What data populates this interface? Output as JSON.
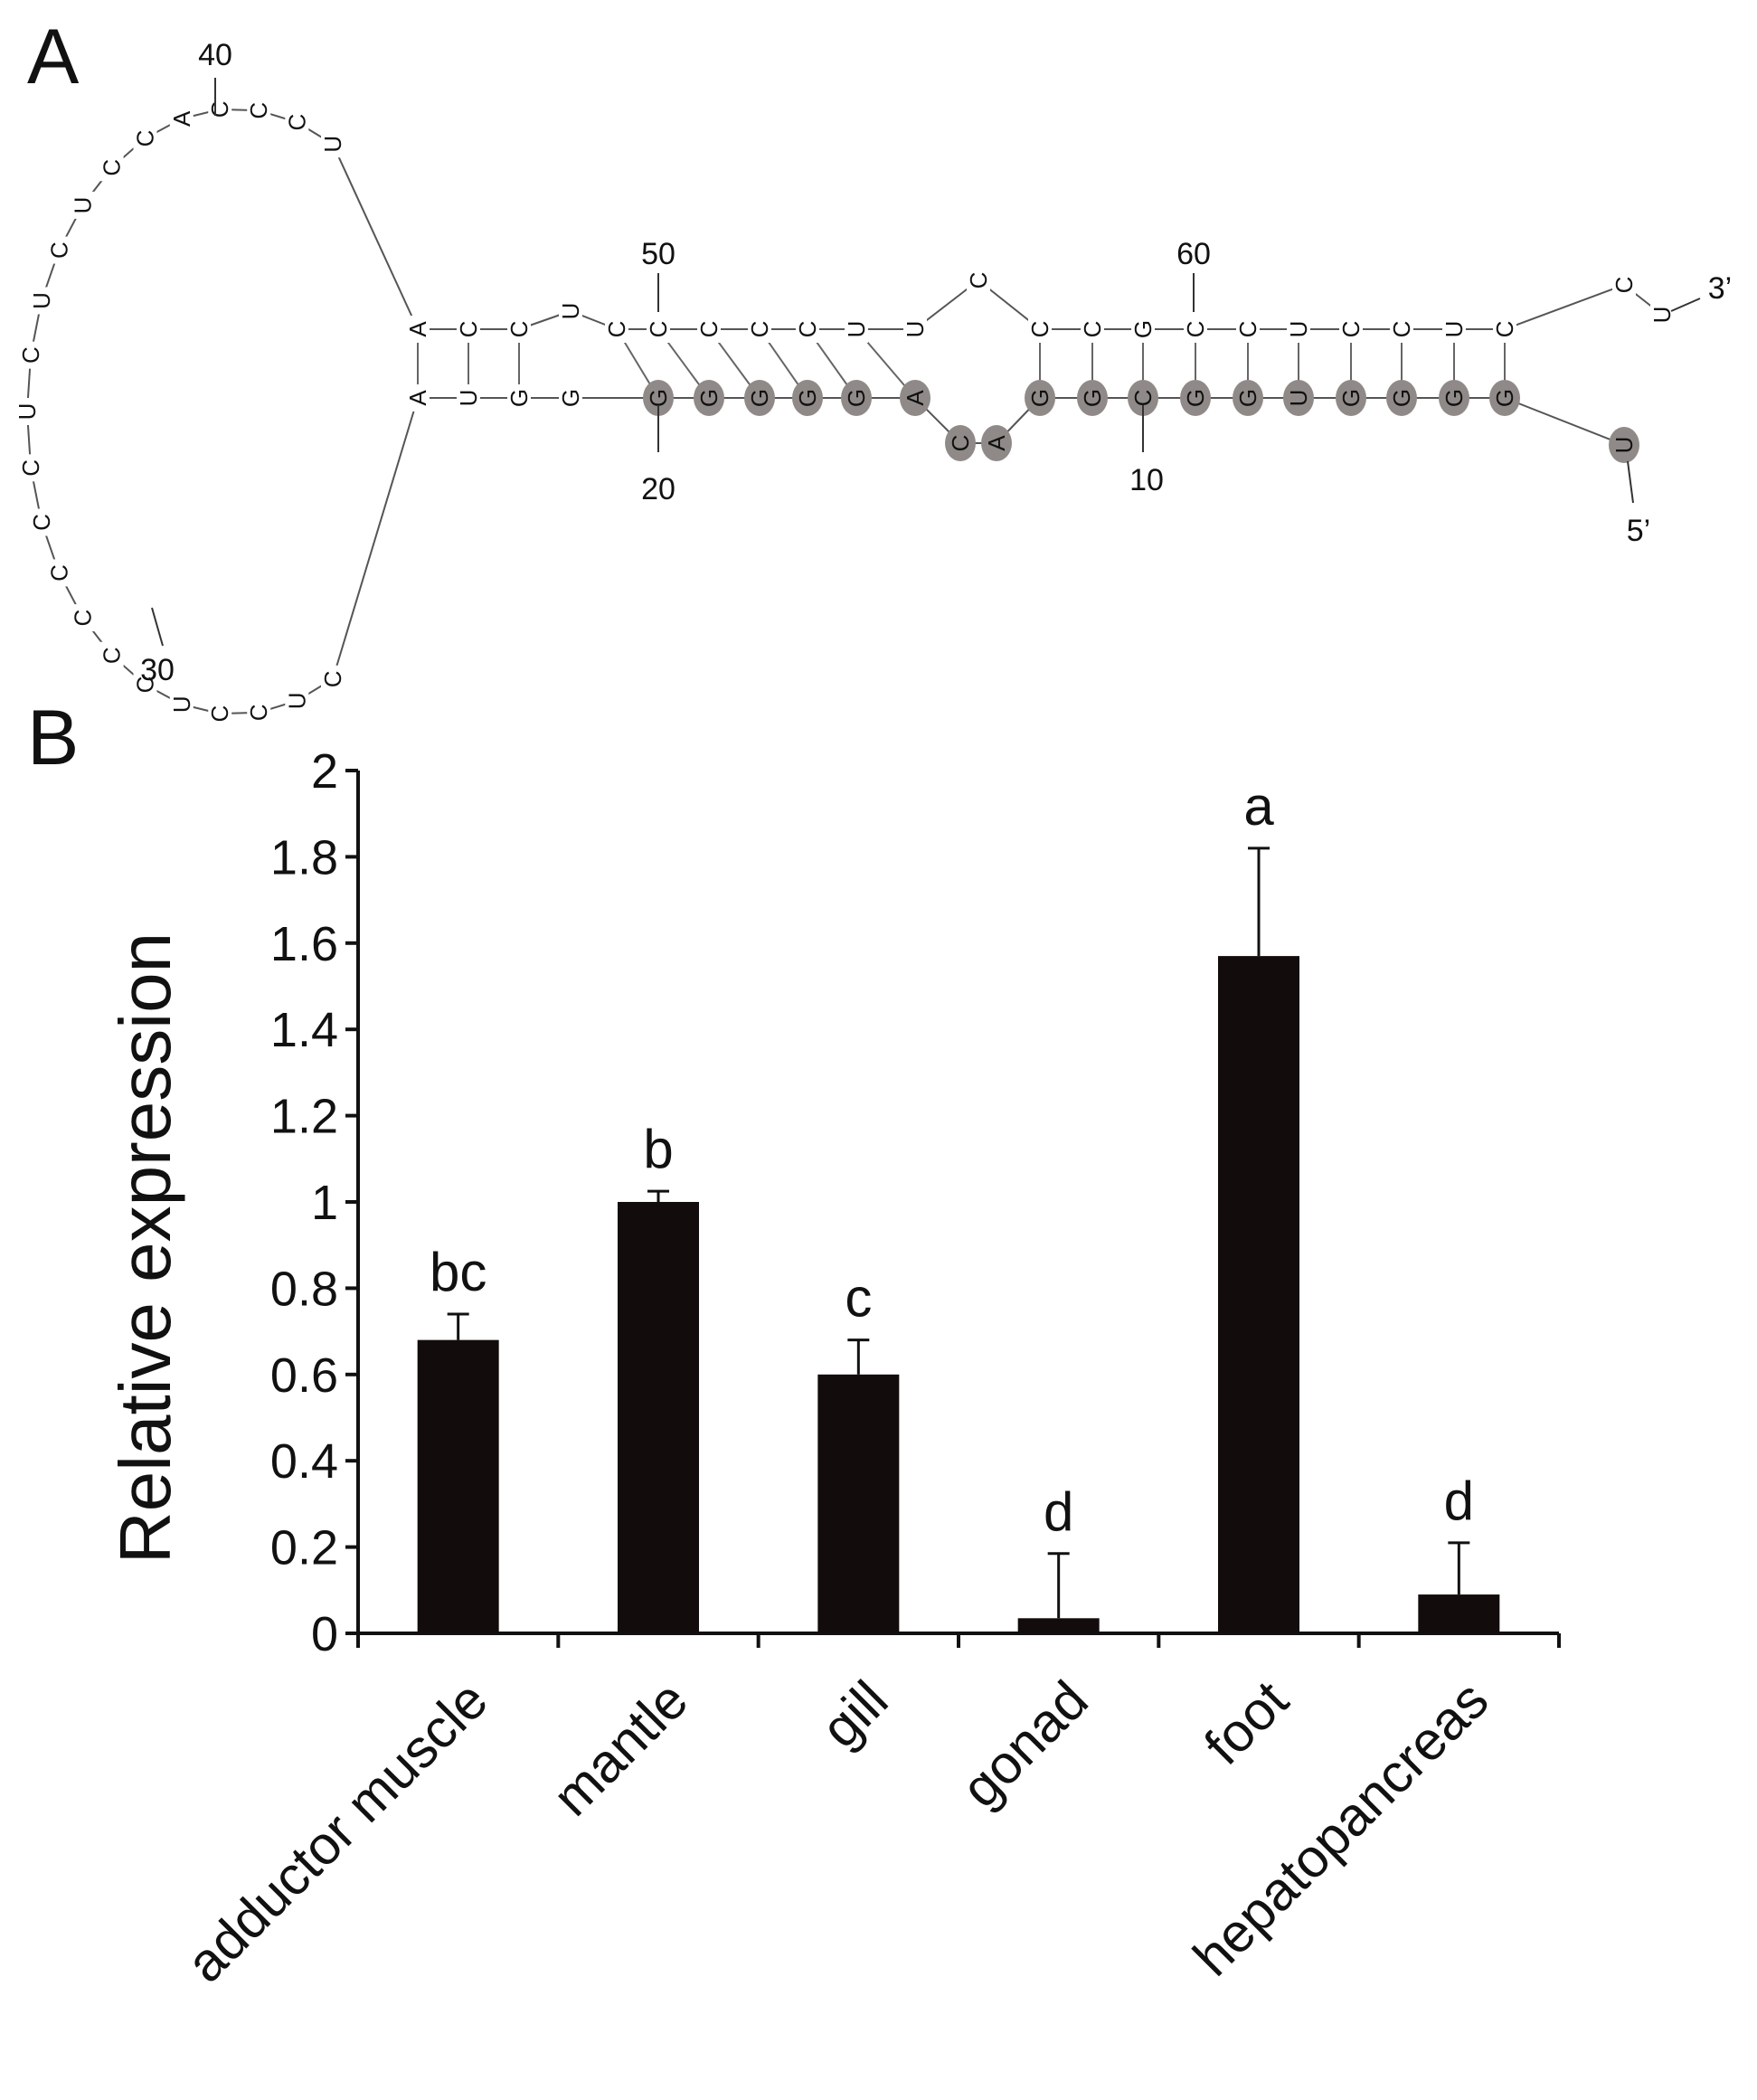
{
  "figure": {
    "panel_a_label": "A",
    "panel_b_label": "B"
  },
  "structure": {
    "top_strand": [
      {
        "nt": "A",
        "highlight": false
      },
      {
        "nt": "C",
        "highlight": false
      },
      {
        "nt": "C",
        "highlight": false
      },
      {
        "nt": "U",
        "highlight": false
      },
      {
        "nt": "C",
        "highlight": false
      },
      {
        "nt": "C",
        "highlight": false
      },
      {
        "nt": "C",
        "highlight": false
      },
      {
        "nt": "C",
        "highlight": false
      },
      {
        "nt": "C",
        "highlight": false
      },
      {
        "nt": "U",
        "highlight": false
      },
      {
        "nt": "U",
        "highlight": false
      },
      {
        "nt": "C",
        "highlight": false
      },
      {
        "nt": "C",
        "highlight": false
      },
      {
        "nt": "G",
        "highlight": false
      },
      {
        "nt": "C",
        "highlight": false
      },
      {
        "nt": "C",
        "highlight": false
      },
      {
        "nt": "U",
        "highlight": false
      },
      {
        "nt": "C",
        "highlight": false
      },
      {
        "nt": "C",
        "highlight": false
      },
      {
        "nt": "U",
        "highlight": false
      },
      {
        "nt": "C",
        "highlight": false
      }
    ],
    "top_tail": [
      "C",
      "U"
    ],
    "bottom_strand": [
      {
        "nt": "A",
        "highlight": false
      },
      {
        "nt": "U",
        "highlight": false
      },
      {
        "nt": "G",
        "highlight": false
      },
      {
        "nt": "G",
        "highlight": false
      },
      {
        "nt": "G",
        "highlight": true
      },
      {
        "nt": "G",
        "highlight": true
      },
      {
        "nt": "G",
        "highlight": true
      },
      {
        "nt": "G",
        "highlight": true
      },
      {
        "nt": "G",
        "highlight": true
      },
      {
        "nt": "A",
        "highlight": true
      },
      {
        "nt": "G",
        "highlight": true
      },
      {
        "nt": "G",
        "highlight": true
      },
      {
        "nt": "C",
        "highlight": true
      },
      {
        "nt": "G",
        "highlight": true
      },
      {
        "nt": "G",
        "highlight": true
      },
      {
        "nt": "U",
        "highlight": true
      },
      {
        "nt": "G",
        "highlight": true
      },
      {
        "nt": "G",
        "highlight": true
      },
      {
        "nt": "G",
        "highlight": true
      },
      {
        "nt": "G",
        "highlight": true
      }
    ],
    "bulge": [
      {
        "nt": "C",
        "highlight": true
      },
      {
        "nt": "A",
        "highlight": true
      }
    ],
    "bottom_tail": {
      "nt": "U",
      "highlight": true
    },
    "loop": [
      "C",
      "U",
      "C",
      "C",
      "U",
      "C",
      "C",
      "C",
      "C",
      "C",
      "C",
      "U",
      "C",
      "U",
      "C",
      "U",
      "C",
      "C",
      "A",
      "C",
      "C",
      "C",
      "U"
    ],
    "labels": {
      "n40": "40",
      "n50": "50",
      "n60": "60",
      "n20": "20",
      "n10": "10",
      "n30": "30",
      "three_prime": "3’",
      "five_prime": "5’"
    }
  },
  "chart_data": {
    "type": "bar",
    "title": "",
    "xlabel": "",
    "ylabel": "Relative expression",
    "ylim": [
      0,
      2
    ],
    "ytick_step": 0.2,
    "ytick_labels": [
      "0",
      "0.2",
      "0.4",
      "0.6",
      "0.8",
      "1",
      "1.2",
      "1.4",
      "1.6",
      "1.8",
      "2"
    ],
    "categories": [
      "adductor muscle",
      "mantle",
      "gill",
      "gonad",
      "foot",
      "hepatopancreas"
    ],
    "values": [
      0.68,
      1.0,
      0.6,
      0.035,
      1.57,
      0.09
    ],
    "errors": [
      0.06,
      0.025,
      0.08,
      0.15,
      0.25,
      0.12
    ],
    "significance": [
      "bc",
      "b",
      "c",
      "d",
      "a",
      "d"
    ],
    "bar_color": "#120c0c",
    "grid": false
  }
}
